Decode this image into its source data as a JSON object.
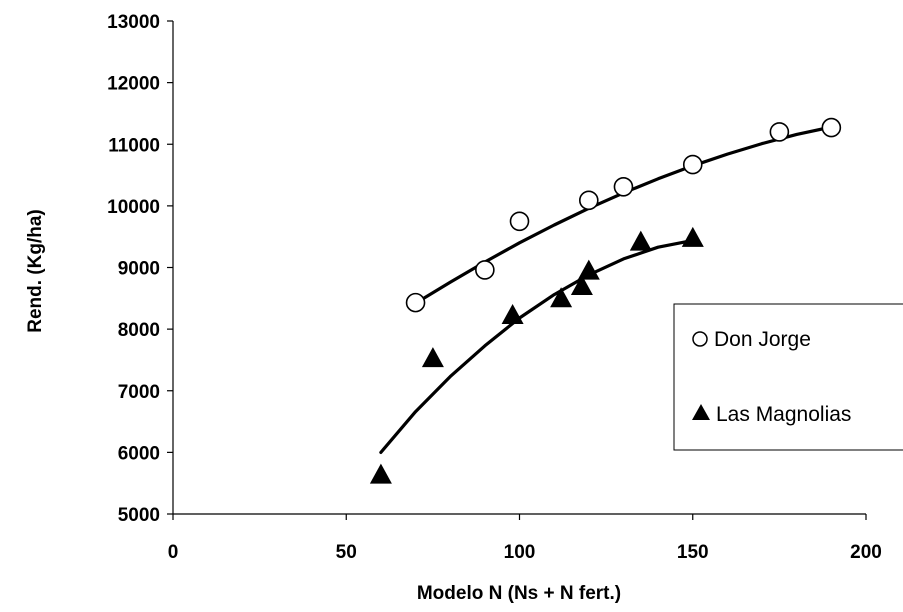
{
  "chart_data": {
    "type": "scatter",
    "title": "",
    "xlabel": "Modelo N (Ns + N fert.)",
    "ylabel": "Rend. (Kg/ha)",
    "xlim": [
      0,
      200
    ],
    "ylim": [
      5000,
      13000
    ],
    "xticks": [
      0,
      50,
      100,
      150,
      200
    ],
    "yticks": [
      5000,
      6000,
      7000,
      8000,
      9000,
      10000,
      11000,
      12000,
      13000
    ],
    "grid": false,
    "legend_position": "right",
    "series": [
      {
        "name": "Don Jorge",
        "marker": "open-circle",
        "color": "#000000",
        "points": [
          [
            70,
            8430
          ],
          [
            90,
            8960
          ],
          [
            100,
            9750
          ],
          [
            120,
            10090
          ],
          [
            130,
            10310
          ],
          [
            150,
            10670
          ],
          [
            175,
            11200
          ],
          [
            190,
            11270
          ]
        ],
        "trend": [
          [
            70,
            8420
          ],
          [
            80,
            8760
          ],
          [
            90,
            9090
          ],
          [
            100,
            9400
          ],
          [
            110,
            9690
          ],
          [
            120,
            9960
          ],
          [
            130,
            10210
          ],
          [
            140,
            10440
          ],
          [
            150,
            10650
          ],
          [
            160,
            10840
          ],
          [
            170,
            11010
          ],
          [
            180,
            11160
          ],
          [
            190,
            11280
          ]
        ]
      },
      {
        "name": "Las Magnolias",
        "marker": "filled-triangle",
        "color": "#000000",
        "points": [
          [
            60,
            5640
          ],
          [
            75,
            7530
          ],
          [
            98,
            8230
          ],
          [
            112,
            8500
          ],
          [
            118,
            8700
          ],
          [
            120,
            8950
          ],
          [
            135,
            9420
          ],
          [
            150,
            9480
          ]
        ],
        "trend": [
          [
            60,
            6000
          ],
          [
            70,
            6660
          ],
          [
            80,
            7230
          ],
          [
            90,
            7730
          ],
          [
            100,
            8180
          ],
          [
            110,
            8560
          ],
          [
            120,
            8880
          ],
          [
            130,
            9140
          ],
          [
            140,
            9330
          ],
          [
            150,
            9440
          ]
        ]
      }
    ]
  }
}
